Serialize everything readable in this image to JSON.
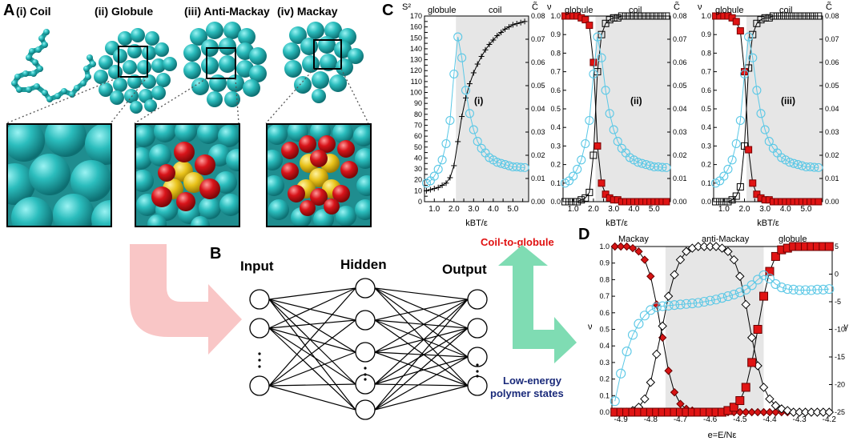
{
  "panel_a": {
    "letter": "A",
    "labels": [
      "(i) Coil",
      "(ii) Globule",
      "(iii) Anti-Mackay",
      "(iv) Mackay"
    ],
    "colors": {
      "bead": "#2fbfbf",
      "red": "#d11a1a",
      "yellow": "#e8c21a"
    }
  },
  "panel_b": {
    "letter": "B",
    "input_label": "Input",
    "hidden_label": "Hidden",
    "output_label": "Output",
    "coil_to_globule": "Coil-to-globule",
    "low_energy_line1": "Low-energy",
    "low_energy_line2": "polymer states",
    "colors": {
      "pink_arrow": "#f9c6c6",
      "green_arrow": "#7fdcb3",
      "red_text": "#e01010",
      "blue_text": "#1a2a7a"
    }
  },
  "panel_c": {
    "letter": "C",
    "charts": [
      {
        "roman": "(i)",
        "left_title": "S²",
        "right_title": "C̃",
        "regime_left": "globule",
        "regime_right": "coil",
        "xlabel": "kBT/ε"
      },
      {
        "roman": "(ii)",
        "left_title": "ν",
        "right_title": "C̃",
        "regime_left": "globule",
        "regime_right": "coil",
        "xlabel": "kBT/ε"
      },
      {
        "roman": "(iii)",
        "left_title": "ν",
        "right_title": "C̃",
        "regime_left": "globule",
        "regime_right": "coil",
        "xlabel": "kBT/ε"
      }
    ]
  },
  "panel_d": {
    "letter": "D",
    "regimes": [
      "Mackay",
      "anti-Mackay",
      "globule"
    ],
    "ylabel": "ν",
    "ylabel_right": "γ",
    "xlabel": "e=E/Nε"
  },
  "chart_data": [
    {
      "type": "line",
      "x": [
        0.6,
        0.8,
        1.0,
        1.2,
        1.4,
        1.6,
        1.8,
        2.0,
        2.2,
        2.4,
        2.6,
        2.8,
        3.0,
        3.2,
        3.4,
        3.6,
        3.8,
        4.0,
        4.2,
        4.4,
        4.6,
        4.8,
        5.0,
        5.2,
        5.4,
        5.6
      ],
      "xlim": [
        0.5,
        5.8
      ],
      "xticks": [
        1.0,
        1.5,
        2.0,
        2.5,
        3.0,
        3.5,
        4.0,
        4.5,
        5.0,
        5.5
      ],
      "ylim": [
        0,
        170
      ],
      "yticks": [
        0,
        5,
        10,
        15,
        20,
        25,
        30,
        35,
        40,
        45,
        50,
        55,
        60,
        65,
        70,
        75,
        80,
        85,
        90,
        95,
        100,
        105,
        110,
        115,
        120,
        125,
        130,
        135,
        140,
        145,
        150,
        155,
        160,
        165,
        170
      ],
      "y2lim": [
        0,
        0.08
      ],
      "y2ticks": [
        0.0,
        0.01,
        0.02,
        0.03,
        0.04,
        0.05,
        0.06,
        0.07,
        0.08
      ],
      "shade": [
        2.1,
        5.8
      ],
      "series": [
        {
          "values": [
            10,
            11,
            12,
            13,
            15,
            17,
            22,
            33,
            55,
            78,
            95,
            108,
            118,
            126,
            133,
            139,
            144,
            148,
            152,
            155,
            158,
            160,
            162,
            163,
            164,
            165
          ]
        },
        {
          "axis": "right",
          "values": [
            0.008,
            0.009,
            0.011,
            0.014,
            0.018,
            0.025,
            0.035,
            0.055,
            0.071,
            0.062,
            0.048,
            0.038,
            0.031,
            0.026,
            0.023,
            0.021,
            0.019,
            0.018,
            0.017,
            0.0165,
            0.016,
            0.0155,
            0.015,
            0.015,
            0.0148,
            0.0147
          ]
        }
      ]
    },
    {
      "type": "line",
      "x": [
        0.6,
        0.8,
        1.0,
        1.2,
        1.4,
        1.6,
        1.8,
        2.0,
        2.2,
        2.4,
        2.6,
        2.8,
        3.0,
        3.2,
        3.4,
        3.6,
        3.8,
        4.0,
        4.2,
        4.4,
        4.6,
        4.8,
        5.0,
        5.2,
        5.4,
        5.6
      ],
      "xlim": [
        0.5,
        5.8
      ],
      "xticks": [
        1.0,
        1.5,
        2.0,
        2.5,
        3.0,
        3.5,
        4.0,
        4.5,
        5.0,
        5.5
      ],
      "ylim": [
        0,
        1.0
      ],
      "yticks": [
        0.0,
        0.1,
        0.2,
        0.3,
        0.4,
        0.5,
        0.6,
        0.7,
        0.8,
        0.9,
        1.0
      ],
      "y2lim": [
        0,
        0.08
      ],
      "y2ticks": [
        0.0,
        0.01,
        0.02,
        0.03,
        0.04,
        0.05,
        0.06,
        0.07,
        0.08
      ],
      "shade": [
        2.1,
        5.8
      ],
      "series": [
        {
          "values": [
            0.0,
            0.0,
            0.0,
            0.0,
            0.01,
            0.02,
            0.05,
            0.25,
            0.7,
            0.9,
            0.96,
            0.98,
            0.99,
            0.99,
            1.0,
            1.0,
            1.0,
            1.0,
            1.0,
            1.0,
            1.0,
            1.0,
            1.0,
            1.0,
            1.0,
            1.0
          ]
        },
        {
          "values": [
            1.0,
            1.0,
            1.0,
            1.0,
            0.99,
            0.98,
            0.95,
            0.75,
            0.3,
            0.1,
            0.04,
            0.02,
            0.01,
            0.01,
            0.0,
            0.0,
            0.0,
            0.0,
            0.0,
            0.0,
            0.0,
            0.0,
            0.0,
            0.0,
            0.0,
            0.0
          ]
        },
        {
          "axis": "right",
          "values": [
            0.008,
            0.009,
            0.011,
            0.014,
            0.018,
            0.025,
            0.035,
            0.055,
            0.071,
            0.062,
            0.048,
            0.038,
            0.031,
            0.026,
            0.023,
            0.021,
            0.019,
            0.018,
            0.017,
            0.0165,
            0.016,
            0.0155,
            0.015,
            0.015,
            0.0148,
            0.0147
          ]
        }
      ]
    },
    {
      "type": "line",
      "x": [
        0.6,
        0.8,
        1.0,
        1.2,
        1.4,
        1.6,
        1.8,
        2.0,
        2.2,
        2.4,
        2.6,
        2.8,
        3.0,
        3.2,
        3.4,
        3.6,
        3.8,
        4.0,
        4.2,
        4.4,
        4.6,
        4.8,
        5.0,
        5.2,
        5.4,
        5.6
      ],
      "xlim": [
        0.5,
        5.8
      ],
      "xticks": [
        1.0,
        1.5,
        2.0,
        2.5,
        3.0,
        3.5,
        4.0,
        4.5,
        5.0,
        5.5
      ],
      "ylim": [
        0,
        1.0
      ],
      "yticks": [
        0.0,
        0.1,
        0.2,
        0.3,
        0.4,
        0.5,
        0.6,
        0.7,
        0.8,
        0.9,
        1.0
      ],
      "y2lim": [
        0,
        0.08
      ],
      "y2ticks": [
        0.0,
        0.01,
        0.02,
        0.03,
        0.04,
        0.05,
        0.06,
        0.07,
        0.08
      ],
      "shade": [
        2.1,
        5.8
      ],
      "series": [
        {
          "values": [
            0.0,
            0.0,
            0.0,
            0.0,
            0.01,
            0.03,
            0.08,
            0.3,
            0.72,
            0.9,
            0.96,
            0.98,
            0.99,
            0.99,
            1.0,
            1.0,
            1.0,
            1.0,
            1.0,
            1.0,
            1.0,
            1.0,
            1.0,
            1.0,
            1.0,
            1.0
          ]
        },
        {
          "values": [
            1.0,
            1.0,
            1.0,
            1.0,
            0.99,
            0.97,
            0.92,
            0.7,
            0.28,
            0.1,
            0.04,
            0.02,
            0.01,
            0.01,
            0.0,
            0.0,
            0.0,
            0.0,
            0.0,
            0.0,
            0.0,
            0.0,
            0.0,
            0.0,
            0.0,
            0.0
          ]
        },
        {
          "axis": "right",
          "values": [
            0.008,
            0.009,
            0.011,
            0.014,
            0.018,
            0.025,
            0.035,
            0.055,
            0.071,
            0.062,
            0.048,
            0.038,
            0.031,
            0.026,
            0.023,
            0.021,
            0.019,
            0.018,
            0.017,
            0.0165,
            0.016,
            0.0155,
            0.015,
            0.015,
            0.0148,
            0.0147
          ]
        }
      ]
    },
    {
      "type": "line",
      "x": [
        -4.92,
        -4.9,
        -4.88,
        -4.86,
        -4.84,
        -4.82,
        -4.8,
        -4.78,
        -4.76,
        -4.74,
        -4.72,
        -4.7,
        -4.68,
        -4.66,
        -4.64,
        -4.62,
        -4.6,
        -4.58,
        -4.56,
        -4.54,
        -4.52,
        -4.5,
        -4.48,
        -4.46,
        -4.44,
        -4.42,
        -4.4,
        -4.38,
        -4.36,
        -4.34,
        -4.32,
        -4.3,
        -4.28,
        -4.26,
        -4.24,
        -4.22,
        -4.2
      ],
      "xlim": [
        -4.93,
        -4.19
      ],
      "xticks": [
        -4.9,
        -4.8,
        -4.7,
        -4.6,
        -4.5,
        -4.4,
        -4.3,
        -4.2
      ],
      "ylim": [
        0,
        1.0
      ],
      "yticks": [
        0.0,
        0.1,
        0.2,
        0.3,
        0.4,
        0.5,
        0.6,
        0.7,
        0.8,
        0.9,
        1.0
      ],
      "y2lim": [
        -25,
        5
      ],
      "y2ticks": [
        -25,
        -20,
        -15,
        -10,
        -5,
        0,
        5
      ],
      "shade": [
        -4.75,
        -4.42
      ],
      "series": [
        {
          "values": [
            1.0,
            1.0,
            1.0,
            0.99,
            0.97,
            0.92,
            0.82,
            0.65,
            0.45,
            0.25,
            0.12,
            0.05,
            0.02,
            0.01,
            0.0,
            0.0,
            0.0,
            0.0,
            0.0,
            0.0,
            0.0,
            0.0,
            0.0,
            0.0,
            0.0,
            0.0,
            0.0,
            0.0,
            0.0,
            0.0,
            0.0,
            0.0,
            0.0,
            0.0,
            0.0,
            0.0,
            0.0
          ]
        },
        {
          "values": [
            0.0,
            0.0,
            0.0,
            0.01,
            0.03,
            0.08,
            0.18,
            0.35,
            0.52,
            0.7,
            0.83,
            0.92,
            0.97,
            0.99,
            1.0,
            1.0,
            1.0,
            1.0,
            0.99,
            0.97,
            0.92,
            0.82,
            0.65,
            0.45,
            0.28,
            0.15,
            0.08,
            0.04,
            0.02,
            0.01,
            0.0,
            0.0,
            0.0,
            0.0,
            0.0,
            0.0,
            0.0
          ]
        },
        {
          "values": [
            0.0,
            0.0,
            0.0,
            0.0,
            0.0,
            0.0,
            0.0,
            0.0,
            0.0,
            0.0,
            0.0,
            0.0,
            0.0,
            0.0,
            0.0,
            0.0,
            0.0,
            0.0,
            0.0,
            0.01,
            0.03,
            0.07,
            0.15,
            0.3,
            0.5,
            0.7,
            0.85,
            0.94,
            0.98,
            0.99,
            1.0,
            1.0,
            1.0,
            1.0,
            1.0,
            1.0,
            1.0
          ]
        },
        {
          "axis": "right",
          "values": [
            -23,
            -18,
            -14,
            -11,
            -9,
            -7.5,
            -6.5,
            -6,
            -5.8,
            -5.7,
            -5.6,
            -5.5,
            -5.4,
            -5.3,
            -5.2,
            -5.0,
            -4.8,
            -4.6,
            -4.3,
            -4.0,
            -3.7,
            -3.3,
            -2.8,
            -2.0,
            -1.0,
            -0.2,
            -0.8,
            -1.8,
            -2.4,
            -2.7,
            -2.8,
            -2.9,
            -2.9,
            -2.9,
            -2.8,
            -2.8,
            -2.7
          ]
        }
      ]
    }
  ]
}
